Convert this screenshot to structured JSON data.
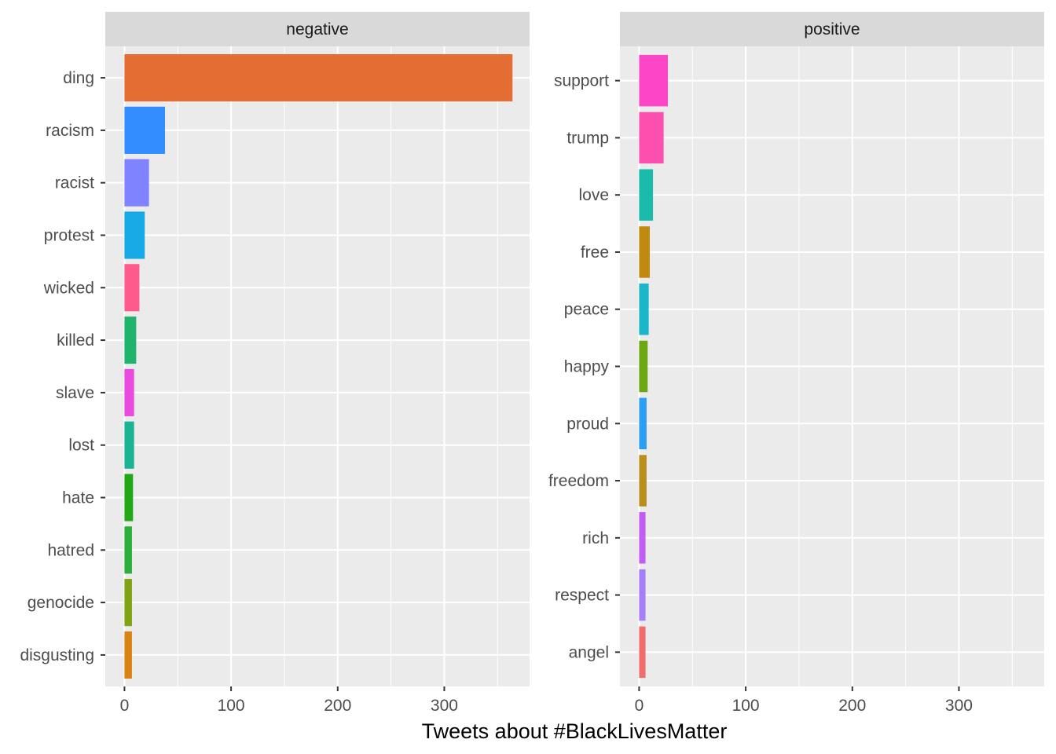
{
  "chart_data": {
    "type": "bar",
    "orientation": "horizontal",
    "xlabel": "Tweets about #BlackLivesMatter",
    "ylabel": "",
    "xlim": [
      -18,
      380
    ],
    "x_ticks": [
      0,
      100,
      200,
      300
    ],
    "x_tick_labels": [
      "0",
      "100",
      "200",
      "300"
    ],
    "x_minor_ticks": [
      50,
      150,
      250,
      350
    ],
    "grid": true,
    "panels": [
      {
        "strip": "negative",
        "categories": [
          "ding",
          "racism",
          "racist",
          "protest",
          "wicked",
          "killed",
          "slave",
          "lost",
          "hate",
          "hatred",
          "genocide",
          "disgusting"
        ],
        "values": [
          364,
          38,
          23,
          19,
          14,
          11,
          9,
          9,
          8,
          7,
          7,
          7
        ],
        "colors": [
          "#E46D33",
          "#338DFF",
          "#8083FF",
          "#17A8E6",
          "#FF5A8C",
          "#1FB46B",
          "#E94BE0",
          "#19B491",
          "#21A915",
          "#2BAE3A",
          "#7FA313",
          "#D98315"
        ]
      },
      {
        "strip": "positive",
        "categories": [
          "support",
          "trump",
          "love",
          "free",
          "peace",
          "happy",
          "proud",
          "freedom",
          "rich",
          "respect",
          "angel"
        ],
        "values": [
          27,
          23,
          13,
          10,
          9,
          8,
          7,
          7,
          6,
          6,
          6
        ],
        "colors": [
          "#FC46C7",
          "#FC4FAE",
          "#1ABBAB",
          "#C08A0F",
          "#1AB6C9",
          "#6CA812",
          "#2B9FF5",
          "#B98F1A",
          "#C25CF5",
          "#A77EFA",
          "#F26C6C"
        ]
      }
    ]
  }
}
